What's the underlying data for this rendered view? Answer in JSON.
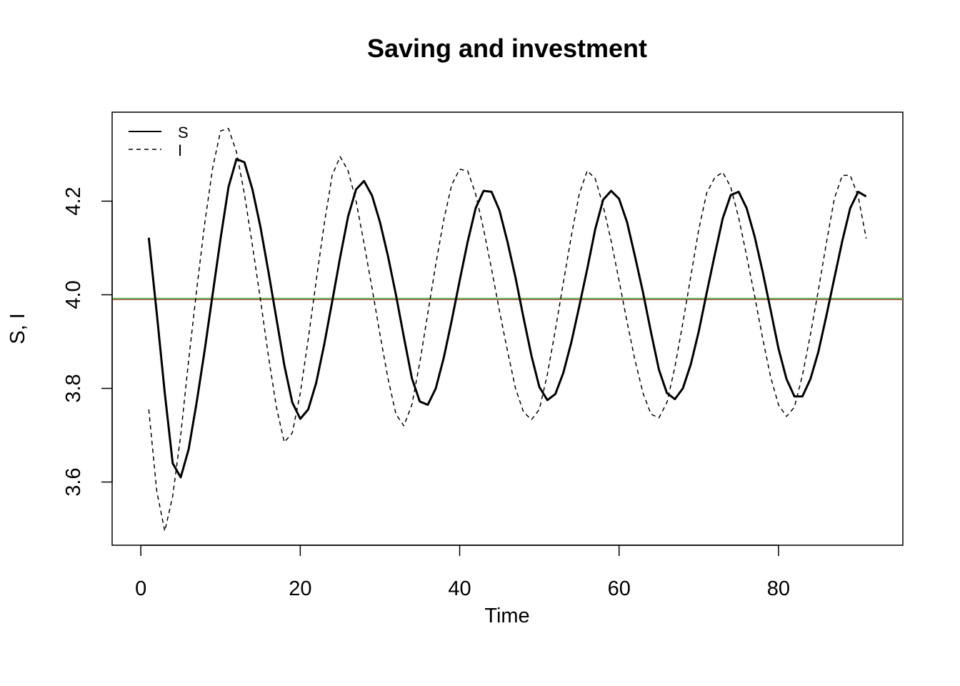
{
  "chart_data": {
    "type": "line",
    "title": "Saving and investment",
    "xlabel": "Time",
    "ylabel": "S, I",
    "xlim": [
      -3.6,
      95.6
    ],
    "ylim": [
      3.465,
      4.39
    ],
    "x_ticks": [
      0,
      20,
      40,
      60,
      80
    ],
    "x_tick_labels": [
      "0",
      "20",
      "40",
      "60",
      "80"
    ],
    "y_ticks": [
      3.6,
      3.8,
      4.0,
      4.2
    ],
    "y_tick_labels": [
      "3.6",
      "3.8",
      "4.0",
      "4.2"
    ],
    "grid": false,
    "legend": {
      "position": "top-left",
      "box": false
    },
    "x": [
      1,
      2,
      3,
      4,
      5,
      6,
      7,
      8,
      9,
      10,
      11,
      12,
      13,
      14,
      15,
      16,
      17,
      18,
      19,
      20,
      21,
      22,
      23,
      24,
      25,
      26,
      27,
      28,
      29,
      30,
      31,
      32,
      33,
      34,
      35,
      36,
      37,
      38,
      39,
      40,
      41,
      42,
      43,
      44,
      45,
      46,
      47,
      48,
      49,
      50,
      51,
      52,
      53,
      54,
      55,
      56,
      57,
      58,
      59,
      60,
      61,
      62,
      63,
      64,
      65,
      66,
      67,
      68,
      69,
      70,
      71,
      72,
      73,
      74,
      75,
      76,
      77,
      78,
      79,
      80,
      81,
      82,
      83,
      84,
      85,
      86,
      87,
      88,
      89,
      90,
      91
    ],
    "series": [
      {
        "name": "S",
        "line_style": "solid",
        "color": "#000000",
        "values": [
          4.122,
          3.96,
          3.79,
          3.64,
          3.61,
          3.67,
          3.77,
          3.88,
          4.0,
          4.12,
          4.23,
          4.29,
          4.283,
          4.225,
          4.145,
          4.05,
          3.95,
          3.85,
          3.77,
          3.735,
          3.755,
          3.812,
          3.893,
          3.985,
          4.08,
          4.167,
          4.225,
          4.243,
          4.212,
          4.155,
          4.083,
          4.0,
          3.91,
          3.822,
          3.772,
          3.765,
          3.8,
          3.865,
          3.945,
          4.03,
          4.113,
          4.185,
          4.222,
          4.22,
          4.18,
          4.113,
          4.037,
          3.952,
          3.87,
          3.803,
          3.775,
          3.788,
          3.833,
          3.898,
          3.975,
          4.055,
          4.14,
          4.203,
          4.222,
          4.205,
          4.155,
          4.082,
          4.005,
          3.92,
          3.84,
          3.79,
          3.777,
          3.8,
          3.852,
          3.922,
          4.005,
          4.085,
          4.163,
          4.213,
          4.22,
          4.185,
          4.125,
          4.05,
          3.968,
          3.885,
          3.82,
          3.783,
          3.783,
          3.82,
          3.878,
          3.955,
          4.035,
          4.115,
          4.185,
          4.22,
          4.21
        ]
      },
      {
        "name": "I",
        "line_style": "dashed",
        "color": "#000000",
        "values": [
          3.755,
          3.58,
          3.495,
          3.57,
          3.7,
          3.86,
          4.01,
          4.15,
          4.27,
          4.35,
          4.355,
          4.305,
          4.215,
          4.105,
          3.99,
          3.87,
          3.76,
          3.685,
          3.705,
          3.79,
          3.905,
          4.03,
          4.15,
          4.255,
          4.295,
          4.265,
          4.2,
          4.11,
          4.015,
          3.915,
          3.822,
          3.745,
          3.72,
          3.765,
          3.855,
          3.96,
          4.065,
          4.16,
          4.235,
          4.268,
          4.265,
          4.215,
          4.14,
          4.055,
          3.965,
          3.88,
          3.8,
          3.75,
          3.733,
          3.755,
          3.83,
          3.925,
          4.025,
          4.125,
          4.215,
          4.265,
          4.248,
          4.19,
          4.115,
          4.03,
          3.942,
          3.86,
          3.79,
          3.745,
          3.737,
          3.77,
          3.845,
          3.94,
          4.04,
          4.14,
          4.218,
          4.25,
          4.262,
          4.23,
          4.165,
          4.083,
          3.998,
          3.908,
          3.825,
          3.765,
          3.74,
          3.76,
          3.828,
          3.915,
          4.01,
          4.11,
          4.205,
          4.255,
          4.255,
          4.21,
          4.12
        ]
      }
    ],
    "reference_lines": [
      {
        "axis": "y",
        "value": 3.99,
        "color": "#c0504d"
      },
      {
        "axis": "y",
        "value": 3.992,
        "color": "#5cb85c"
      }
    ]
  }
}
